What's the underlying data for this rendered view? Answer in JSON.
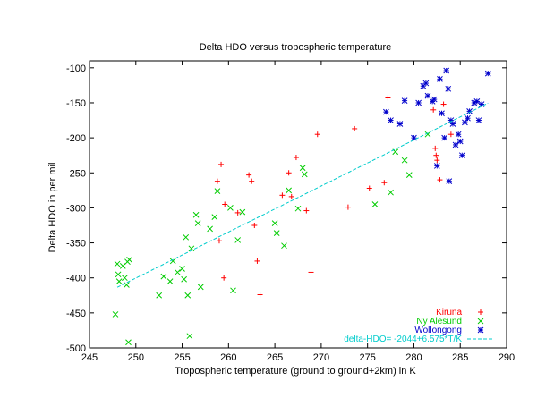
{
  "chart_data": {
    "type": "scatter",
    "title": "Delta HDO versus tropospheric temperature",
    "xlabel": "Tropospheric temperature (ground to ground+2km) in K",
    "ylabel": "Delta HDO in per mil",
    "xlim": [
      245,
      290
    ],
    "ylim": [
      -500,
      -90
    ],
    "xticks": [
      245,
      250,
      255,
      260,
      265,
      270,
      275,
      280,
      285,
      290
    ],
    "yticks": [
      -500,
      -450,
      -400,
      -350,
      -300,
      -250,
      -200,
      -150,
      -100
    ],
    "legend_position": "bottom-right",
    "grid": false,
    "series": [
      {
        "name": "Kiruna",
        "color": "#ff0000",
        "marker": "+",
        "points": [
          [
            259.0,
            -347
          ],
          [
            259.2,
            -238
          ],
          [
            259.5,
            -400
          ],
          [
            258.8,
            -262
          ],
          [
            259.6,
            -295
          ],
          [
            261.0,
            -307
          ],
          [
            262.2,
            -253
          ],
          [
            262.5,
            -262
          ],
          [
            262.8,
            -325
          ],
          [
            263.1,
            -376
          ],
          [
            263.4,
            -424
          ],
          [
            265.8,
            -282
          ],
          [
            266.5,
            -250
          ],
          [
            266.8,
            -284
          ],
          [
            267.3,
            -228
          ],
          [
            268.4,
            -304
          ],
          [
            268.9,
            -392
          ],
          [
            269.6,
            -195
          ],
          [
            272.9,
            -299
          ],
          [
            273.6,
            -187
          ],
          [
            275.2,
            -272
          ],
          [
            276.8,
            -264
          ],
          [
            277.2,
            -143
          ],
          [
            282.1,
            -160
          ],
          [
            282.3,
            -215
          ],
          [
            282.4,
            -225
          ],
          [
            282.5,
            -232
          ],
          [
            282.8,
            -260
          ],
          [
            283.2,
            -152
          ],
          [
            284.0,
            -195
          ]
        ]
      },
      {
        "name": "Ny Alesund",
        "color": "#00cc00",
        "marker": "x",
        "points": [
          [
            247.8,
            -452
          ],
          [
            248.0,
            -380
          ],
          [
            248.1,
            -395
          ],
          [
            248.2,
            -405
          ],
          [
            248.6,
            -383
          ],
          [
            248.8,
            -400
          ],
          [
            249.0,
            -410
          ],
          [
            249.1,
            -377
          ],
          [
            249.3,
            -374
          ],
          [
            249.2,
            -492
          ],
          [
            252.5,
            -425
          ],
          [
            253.0,
            -398
          ],
          [
            253.7,
            -405
          ],
          [
            254.0,
            -376
          ],
          [
            254.5,
            -392
          ],
          [
            255.0,
            -387
          ],
          [
            255.2,
            -402
          ],
          [
            255.4,
            -342
          ],
          [
            255.6,
            -425
          ],
          [
            255.8,
            -483
          ],
          [
            256.0,
            -358
          ],
          [
            256.5,
            -310
          ],
          [
            256.7,
            -322
          ],
          [
            257.0,
            -413
          ],
          [
            258.0,
            -330
          ],
          [
            258.5,
            -313
          ],
          [
            258.8,
            -276
          ],
          [
            260.2,
            -300
          ],
          [
            260.5,
            -418
          ],
          [
            261.0,
            -346
          ],
          [
            261.5,
            -306
          ],
          [
            265.0,
            -322
          ],
          [
            265.2,
            -336
          ],
          [
            266.0,
            -354
          ],
          [
            266.5,
            -275
          ],
          [
            267.5,
            -301
          ],
          [
            268.0,
            -243
          ],
          [
            268.2,
            -252
          ],
          [
            275.8,
            -295
          ],
          [
            277.5,
            -278
          ],
          [
            278.0,
            -220
          ],
          [
            279.0,
            -232
          ],
          [
            279.5,
            -253
          ],
          [
            281.5,
            -195
          ]
        ]
      },
      {
        "name": "Wollongong",
        "color": "#0000cc",
        "marker": "*",
        "points": [
          [
            277.0,
            -163
          ],
          [
            277.5,
            -175
          ],
          [
            278.5,
            -180
          ],
          [
            279.0,
            -147
          ],
          [
            280.0,
            -200
          ],
          [
            280.5,
            -150
          ],
          [
            281.0,
            -126
          ],
          [
            281.3,
            -122
          ],
          [
            281.5,
            -140
          ],
          [
            282.0,
            -148
          ],
          [
            282.2,
            -145
          ],
          [
            282.5,
            -240
          ],
          [
            282.8,
            -116
          ],
          [
            283.0,
            -165
          ],
          [
            283.3,
            -200
          ],
          [
            283.5,
            -104
          ],
          [
            283.7,
            -130
          ],
          [
            283.8,
            -262
          ],
          [
            284.0,
            -175
          ],
          [
            284.2,
            -180
          ],
          [
            284.5,
            -210
          ],
          [
            284.8,
            -195
          ],
          [
            285.0,
            -205
          ],
          [
            285.2,
            -225
          ],
          [
            285.5,
            -178
          ],
          [
            285.8,
            -172
          ],
          [
            286.0,
            -162
          ],
          [
            286.5,
            -150
          ],
          [
            286.8,
            -148
          ],
          [
            287.0,
            -175
          ],
          [
            287.3,
            -152
          ],
          [
            288.0,
            -108
          ]
        ]
      }
    ],
    "fit": {
      "name": "delta-HDO= -2044+6.575*T/K",
      "color": "#00cccc",
      "intercept": -2044,
      "slope": 6.575,
      "x_range": [
        248,
        288
      ]
    }
  }
}
